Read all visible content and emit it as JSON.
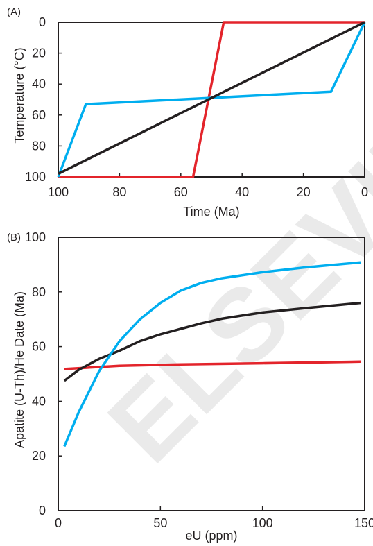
{
  "watermark": "ELSEVIER SCIENCE",
  "chart_data": [
    {
      "panel_label": "(A)",
      "type": "line",
      "xlabel": "Time (Ma)",
      "ylabel": "Temperature (°C)",
      "xlim": [
        100,
        0
      ],
      "ylim": [
        100,
        0
      ],
      "x_ticks": [
        100,
        80,
        60,
        40,
        20,
        0
      ],
      "y_ticks": [
        0,
        20,
        40,
        60,
        80,
        100
      ],
      "y_inverted": true,
      "x_reversed": true,
      "series": [
        {
          "color": "#e3242b",
          "points": [
            [
              100,
              100
            ],
            [
              56,
              100
            ],
            [
              46,
              0
            ],
            [
              0,
              0
            ]
          ]
        },
        {
          "color": "#00aeef",
          "points": [
            [
              100,
              100
            ],
            [
              91,
              53
            ],
            [
              11,
              45
            ],
            [
              0,
              0
            ]
          ]
        },
        {
          "color": "#231f20",
          "points": [
            [
              100,
              98
            ],
            [
              0,
              0
            ]
          ]
        }
      ]
    },
    {
      "panel_label": "(B)",
      "type": "line",
      "xlabel": "eU (ppm)",
      "ylabel": "Apatite (U-Th)/He Date (Ma)",
      "xlim": [
        0,
        150
      ],
      "ylim": [
        0,
        100
      ],
      "x_ticks": [
        0,
        50,
        100,
        150
      ],
      "y_ticks": [
        0,
        20,
        40,
        60,
        80,
        100
      ],
      "series": [
        {
          "color": "#e3242b",
          "points": [
            [
              3,
              51.8
            ],
            [
              30,
              53.0
            ],
            [
              60,
              53.5
            ],
            [
              100,
              53.9
            ],
            [
              148,
              54.5
            ]
          ]
        },
        {
          "color": "#231f20",
          "points": [
            [
              3,
              47.5
            ],
            [
              10,
              51.5
            ],
            [
              20,
              55.5
            ],
            [
              30,
              58.5
            ],
            [
              40,
              62.0
            ],
            [
              50,
              64.5
            ],
            [
              60,
              66.5
            ],
            [
              70,
              68.5
            ],
            [
              80,
              70.2
            ],
            [
              100,
              72.5
            ],
            [
              120,
              74.0
            ],
            [
              148,
              76.0
            ]
          ]
        },
        {
          "color": "#00aeef",
          "points": [
            [
              3,
              23.5
            ],
            [
              10,
              36.0
            ],
            [
              20,
              51.0
            ],
            [
              30,
              62.0
            ],
            [
              40,
              70.0
            ],
            [
              50,
              76.0
            ],
            [
              60,
              80.5
            ],
            [
              70,
              83.3
            ],
            [
              80,
              85.0
            ],
            [
              100,
              87.2
            ],
            [
              120,
              88.9
            ],
            [
              148,
              90.8
            ]
          ]
        }
      ]
    }
  ]
}
